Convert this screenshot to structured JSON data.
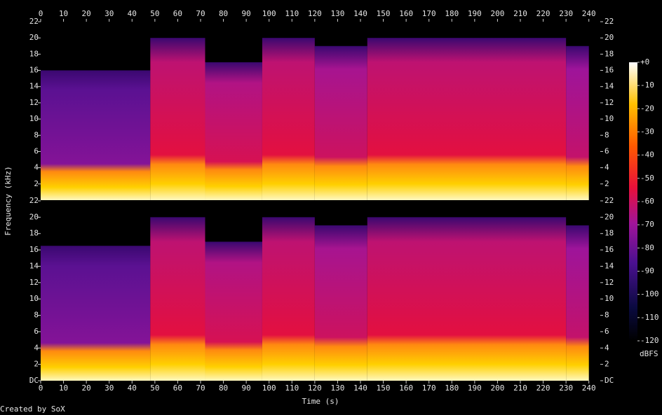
{
  "chart_data": [
    {
      "type": "spectrogram",
      "y_label": "Frequency (kHz)",
      "xlim": [
        0,
        245
      ],
      "ylim": [
        0,
        22
      ],
      "xticks": [
        0,
        10,
        20,
        30,
        40,
        50,
        60,
        70,
        80,
        90,
        100,
        110,
        120,
        130,
        140,
        150,
        160,
        170,
        180,
        190,
        200,
        210,
        220,
        230,
        240
      ],
      "yticks": [
        2,
        4,
        6,
        8,
        10,
        12,
        14,
        16,
        18,
        20,
        22
      ],
      "segments": [
        {
          "start": 0,
          "end": 48,
          "cutoff": 16,
          "level": -75
        },
        {
          "start": 48,
          "end": 72,
          "cutoff": 20,
          "level": -55
        },
        {
          "start": 72,
          "end": 97,
          "cutoff": 17,
          "level": -58
        },
        {
          "start": 97,
          "end": 120,
          "cutoff": 20,
          "level": -55
        },
        {
          "start": 120,
          "end": 143,
          "cutoff": 19,
          "level": -60
        },
        {
          "start": 143,
          "end": 230,
          "cutoff": 20,
          "level": -55
        },
        {
          "start": 230,
          "end": 240,
          "cutoff": 19,
          "level": -62
        }
      ]
    },
    {
      "type": "spectrogram",
      "x_label": "Time (s)",
      "xlim": [
        0,
        245
      ],
      "ylim": [
        0,
        22
      ],
      "xticks": [
        0,
        10,
        20,
        30,
        40,
        50,
        60,
        70,
        80,
        90,
        100,
        110,
        120,
        130,
        140,
        150,
        160,
        170,
        180,
        190,
        200,
        210,
        220,
        230,
        240
      ],
      "yticks": [
        {
          "value": 0,
          "label": "DC"
        },
        2,
        4,
        6,
        8,
        10,
        12,
        14,
        16,
        18,
        20,
        22
      ],
      "segments": [
        {
          "start": 0,
          "end": 48,
          "cutoff": 16.5,
          "level": -75
        },
        {
          "start": 48,
          "end": 72,
          "cutoff": 20,
          "level": -55
        },
        {
          "start": 72,
          "end": 97,
          "cutoff": 17,
          "level": -58
        },
        {
          "start": 97,
          "end": 120,
          "cutoff": 20,
          "level": -55
        },
        {
          "start": 120,
          "end": 143,
          "cutoff": 19,
          "level": -60
        },
        {
          "start": 143,
          "end": 230,
          "cutoff": 20,
          "level": -55
        },
        {
          "start": 230,
          "end": 240,
          "cutoff": 19,
          "level": -62
        }
      ]
    }
  ],
  "colorbar": {
    "label": "dBFS",
    "zlim": [
      -120,
      0
    ],
    "ticks": [
      {
        "value": 0,
        "label": "+0"
      },
      -10,
      -20,
      -30,
      -40,
      -50,
      -60,
      -70,
      -80,
      -90,
      -100,
      -110,
      -120
    ]
  },
  "footer": "Created by SoX"
}
